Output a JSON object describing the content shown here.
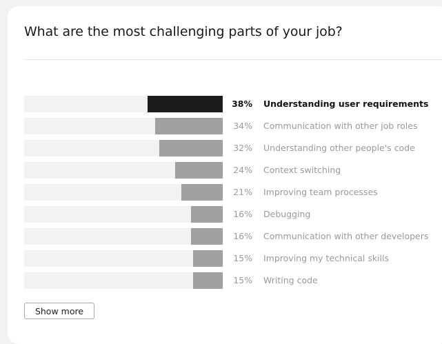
{
  "question": "What are the most challenging parts of your job?",
  "show_more_label": "Show more",
  "colors": {
    "highlight_bar": "#1c1c1c",
    "bar": "#a0a0a0",
    "track": "#f2f2f2",
    "muted_text": "#9a9a9a"
  },
  "chart_data": {
    "type": "bar",
    "orientation": "horizontal",
    "title": "What are the most challenging parts of your job?",
    "unit": "%",
    "xlim": [
      0,
      100
    ],
    "highlight_index": 0,
    "categories": [
      "Understanding user requirements",
      "Communication with other job roles",
      "Understanding other people's code",
      "Context switching",
      "Improving team processes",
      "Debugging",
      "Communication with other developers",
      "Improving my technical skills",
      "Writing code"
    ],
    "values": [
      38,
      34,
      32,
      24,
      21,
      16,
      16,
      15,
      15
    ],
    "value_labels": [
      "38%",
      "34%",
      "32%",
      "24%",
      "21%",
      "16%",
      "16%",
      "15%",
      "15%"
    ]
  }
}
